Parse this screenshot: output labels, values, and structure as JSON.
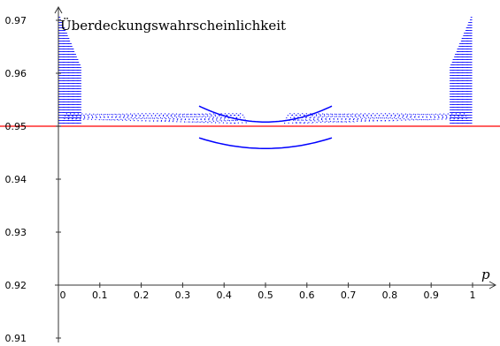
{
  "chart_data": {
    "type": "scatter",
    "title": "",
    "ylabel": "Überdeckungswahrscheinlichkeit",
    "xlabel": "p",
    "xlim": [
      -0.02,
      1.05
    ],
    "ylim": [
      0.9085,
      0.9725
    ],
    "x_ticks": [
      "0",
      "0.1",
      "0.2",
      "0.3",
      "0.4",
      "0.5",
      "0.6",
      "0.7",
      "0.8",
      "0.9",
      "1"
    ],
    "x_tick_values": [
      0,
      0.1,
      0.2,
      0.3,
      0.4,
      0.5,
      0.6,
      0.7,
      0.8,
      0.9,
      1
    ],
    "y_ticks": [
      "0.91",
      "0.92",
      "0.93",
      "0.94",
      "0.95",
      "0.96",
      "0.97"
    ],
    "y_tick_values": [
      0.91,
      0.92,
      0.93,
      0.94,
      0.95,
      0.96,
      0.97
    ],
    "x_axis_crosses_y_at": 0.92,
    "reference_line": {
      "y": 0.95,
      "color": "#ff0000"
    },
    "series": [
      {
        "color": "#0000ff",
        "style": "dotted-piecewise-curves",
        "points_x": [
          0.05,
          0.1,
          0.15,
          0.2,
          0.25,
          0.3,
          0.35,
          0.4,
          0.45,
          0.5,
          0.55,
          0.6,
          0.65,
          0.7,
          0.75,
          0.8,
          0.85,
          0.9,
          0.95
        ],
        "y_range_min": 0.9502,
        "y_range_max": 0.971
      }
    ],
    "grid": false,
    "legend": "none"
  }
}
